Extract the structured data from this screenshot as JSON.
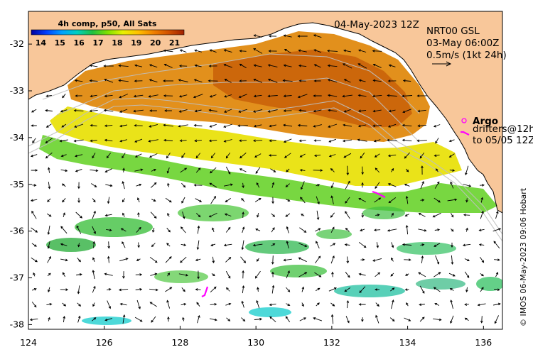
{
  "map": {
    "date_label": "04-May-2023 12Z",
    "current_title": "NRT00 GSL",
    "current_time": "03-May 06:00Z",
    "current_scale": "0.5m/s (1kt 24h)",
    "argo_label": "Argo",
    "drifters_label": "drifters@12h",
    "drifters_range": "to 05/05 12Z",
    "credit": "© IMOS 06-May-2023 09:06 Hobart",
    "colors": {
      "land": "#f8c79a",
      "ocean": "#ffffff",
      "argo": "#ff00ff"
    },
    "colorbar": {
      "title": "4h comp, p50, All Sats",
      "ticks": [
        "14",
        "15",
        "16",
        "17",
        "18",
        "19",
        "20",
        "21"
      ],
      "min": 13.5,
      "max": 21.5,
      "palette": [
        "#0000a0",
        "#0040ff",
        "#00a0ff",
        "#00d0c0",
        "#20c040",
        "#80e000",
        "#e8f000",
        "#ffc000",
        "#f08000",
        "#d05000",
        "#a02000"
      ]
    },
    "x_ticks": [
      "124",
      "126",
      "128",
      "130",
      "132",
      "134",
      "136"
    ],
    "y_ticks": [
      "-32",
      "-33",
      "-34",
      "-35",
      "-36",
      "-37",
      "-38"
    ],
    "extent": {
      "lon": [
        124,
        136.5
      ],
      "lat": [
        -38.1,
        -31.3
      ]
    }
  }
}
